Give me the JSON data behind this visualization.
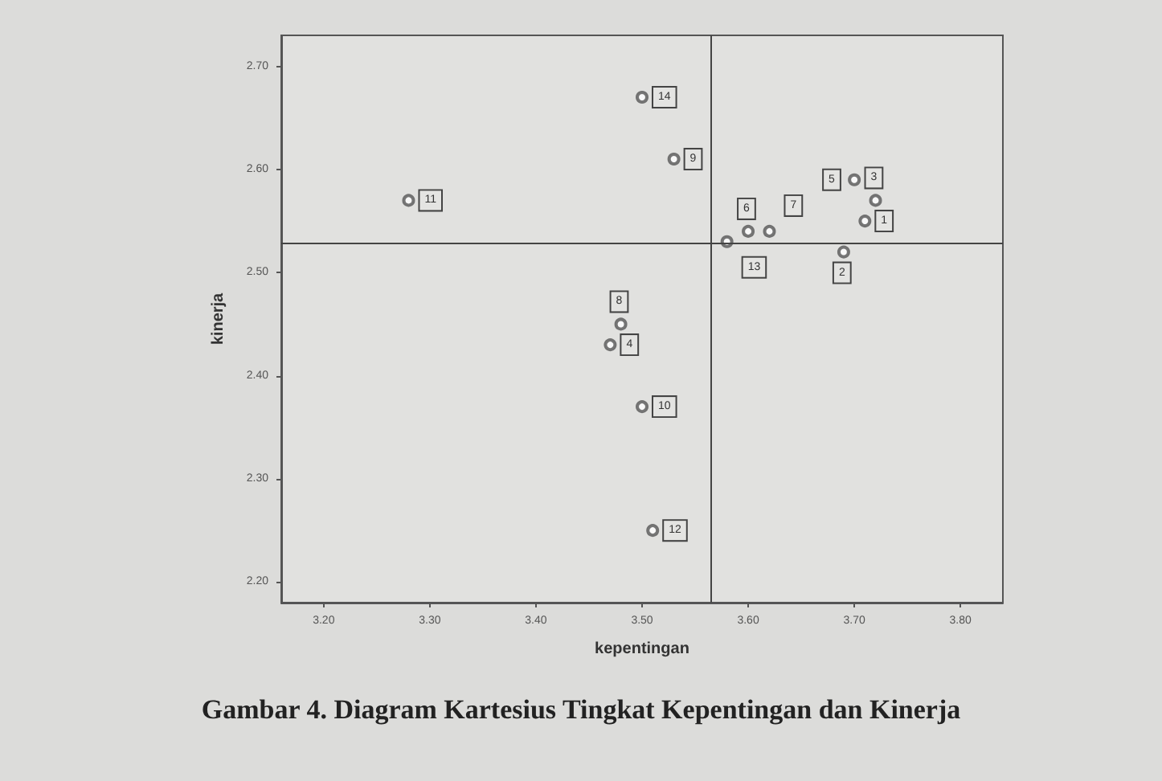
{
  "chart_data": {
    "type": "scatter",
    "xlabel": "kepentingan",
    "ylabel": "kinerja",
    "annotations": [
      "Gambar 4. Diagram Kartesius Tingkat Kepentingan dan Kinerja",
      {
        "text": "1",
        "x": 3.71,
        "y": 2.55
      },
      {
        "text": "2",
        "x": 3.69,
        "y": 2.52
      },
      {
        "text": "3",
        "x": 3.72,
        "y": 2.57
      },
      {
        "text": "4",
        "x": 3.47,
        "y": 2.43
      },
      {
        "text": "5",
        "x": 3.7,
        "y": 2.59
      },
      {
        "text": "6",
        "x": 3.6,
        "y": 2.54
      },
      {
        "text": "7",
        "x": 3.62,
        "y": 2.54
      },
      {
        "text": "8",
        "x": 3.48,
        "y": 2.45
      },
      {
        "text": "9",
        "x": 3.53,
        "y": 2.61
      },
      {
        "text": "10",
        "x": 3.5,
        "y": 2.37
      },
      {
        "text": "11",
        "x": 3.28,
        "y": 2.57
      },
      {
        "text": "12",
        "x": 3.51,
        "y": 2.25
      },
      {
        "text": "13",
        "x": 3.58,
        "y": 2.53
      },
      {
        "text": "14",
        "x": 3.5,
        "y": 2.67
      }
    ],
    "x": [
      3.71,
      3.69,
      3.72,
      3.47,
      3.7,
      3.6,
      3.62,
      3.48,
      3.53,
      3.5,
      3.28,
      3.51,
      3.58,
      3.5
    ],
    "values": [
      2.55,
      2.52,
      2.57,
      2.43,
      2.59,
      2.54,
      2.54,
      2.45,
      2.61,
      2.37,
      2.57,
      2.25,
      2.53,
      2.67
    ],
    "color": "#555555",
    "marker": "circle",
    "grid": false,
    "xlim": [
      3.16,
      3.84
    ],
    "xticks": [
      {
        "value": 3.2,
        "label": "3.20"
      },
      {
        "value": 3.3,
        "label": "3.30"
      },
      {
        "value": 3.4,
        "label": "3.40"
      },
      {
        "value": 3.5,
        "label": "3.50"
      },
      {
        "value": 3.6,
        "label": "3.60"
      },
      {
        "value": 3.7,
        "label": "3.70"
      },
      {
        "value": 3.8,
        "label": "3.80"
      }
    ],
    "ylim": [
      2.18,
      2.73
    ],
    "yticks": [
      {
        "value": 2.2,
        "label": "2.20"
      },
      {
        "value": 2.3,
        "label": "2.30"
      },
      {
        "value": 2.4,
        "label": "2.40"
      },
      {
        "value": 2.5,
        "label": "2.50"
      },
      {
        "value": 2.6,
        "label": "2.60"
      },
      {
        "value": 2.7,
        "label": "2.70"
      }
    ],
    "ref_lines": [
      {
        "axis": "x",
        "value": 3.565,
        "label": null
      },
      {
        "axis": "y",
        "value": 2.528,
        "label": null
      }
    ]
  }
}
